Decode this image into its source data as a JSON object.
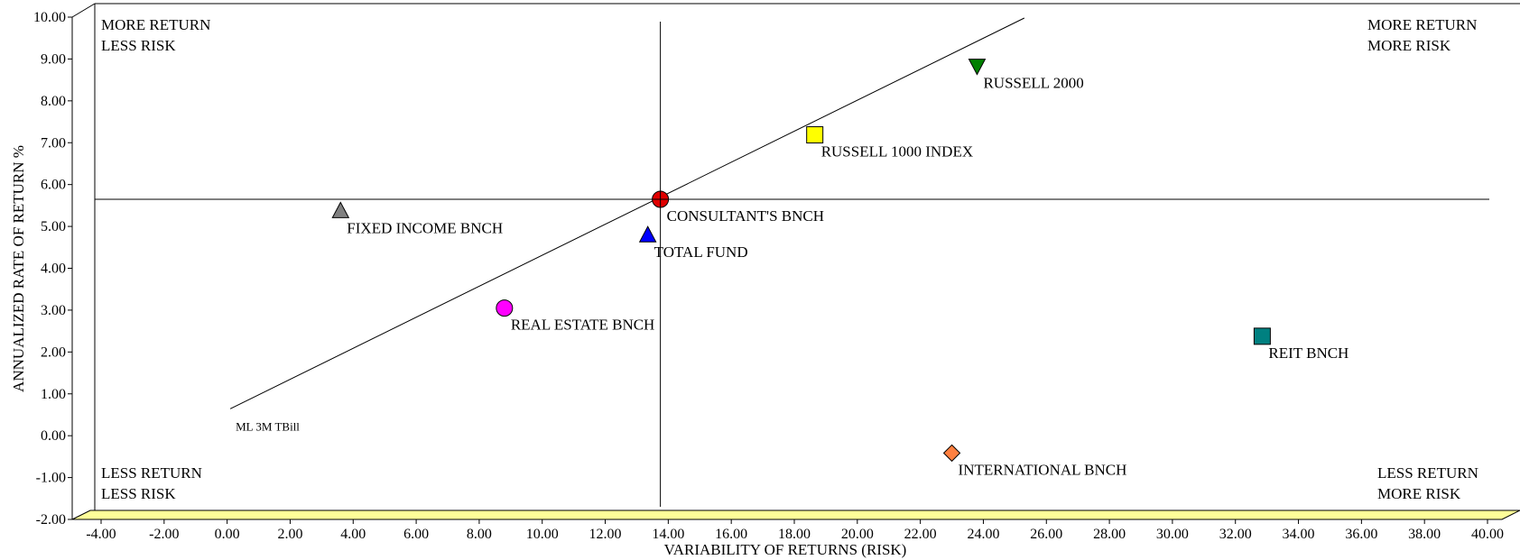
{
  "chart_data": {
    "type": "scatter",
    "xlabel": "VARIABILITY OF RETURNS (RISK)",
    "ylabel": "ANNUALIZED RATE OF RETURN %",
    "xlim": [
      -4,
      40
    ],
    "ylim": [
      -2,
      10
    ],
    "x_ticks": [
      "-4.00",
      "-2.00",
      "0.00",
      "2.00",
      "4.00",
      "6.00",
      "8.00",
      "10.00",
      "12.00",
      "14.00",
      "16.00",
      "18.00",
      "20.00",
      "22.00",
      "24.00",
      "26.00",
      "28.00",
      "30.00",
      "32.00",
      "34.00",
      "36.00",
      "38.00",
      "40.00"
    ],
    "y_ticks": [
      "-2.00",
      "-1.00",
      "0.00",
      "1.00",
      "2.00",
      "3.00",
      "4.00",
      "5.00",
      "6.00",
      "7.00",
      "8.00",
      "9.00",
      "10.00"
    ],
    "quadrants": {
      "top_left": [
        "MORE RETURN",
        "LESS RISK"
      ],
      "top_right": [
        "MORE RETURN",
        "MORE RISK"
      ],
      "bottom_left": [
        "LESS RETURN",
        "LESS RISK"
      ],
      "bottom_right": [
        "LESS RETURN",
        "MORE RISK"
      ]
    },
    "reference_lines": {
      "vertical_x": 13.75,
      "horizontal_y": 5.5
    },
    "market_line": {
      "start": [
        0.1,
        0.3
      ],
      "end": [
        25.3,
        10.0
      ],
      "label": "ML 3M TBill"
    },
    "points": [
      {
        "name": "CONSULTANT'S BNCH",
        "x": 13.75,
        "y": 5.5,
        "marker": "circle-cross",
        "color": "#e00000"
      },
      {
        "name": "FIXED INCOME BNCH",
        "x": 3.6,
        "y": 5.2,
        "marker": "triangle-up",
        "color": "#808080"
      },
      {
        "name": "TOTAL FUND",
        "x": 13.35,
        "y": 4.6,
        "marker": "triangle-up",
        "color": "#0000ff"
      },
      {
        "name": "REAL ESTATE BNCH",
        "x": 8.8,
        "y": 2.8,
        "marker": "circle",
        "color": "#ff00ff"
      },
      {
        "name": "RUSSELL 1000 INDEX",
        "x": 18.65,
        "y": 7.1,
        "marker": "square",
        "color": "#ffff00"
      },
      {
        "name": "RUSSELL 2000",
        "x": 23.8,
        "y": 8.8,
        "marker": "triangle-down",
        "color": "#008000"
      },
      {
        "name": "REIT BNCH",
        "x": 32.85,
        "y": 2.1,
        "marker": "square",
        "color": "#008080"
      },
      {
        "name": "INTERNATIONAL BNCH",
        "x": 23.0,
        "y": -0.8,
        "marker": "diamond",
        "color": "#ff8040"
      }
    ]
  }
}
